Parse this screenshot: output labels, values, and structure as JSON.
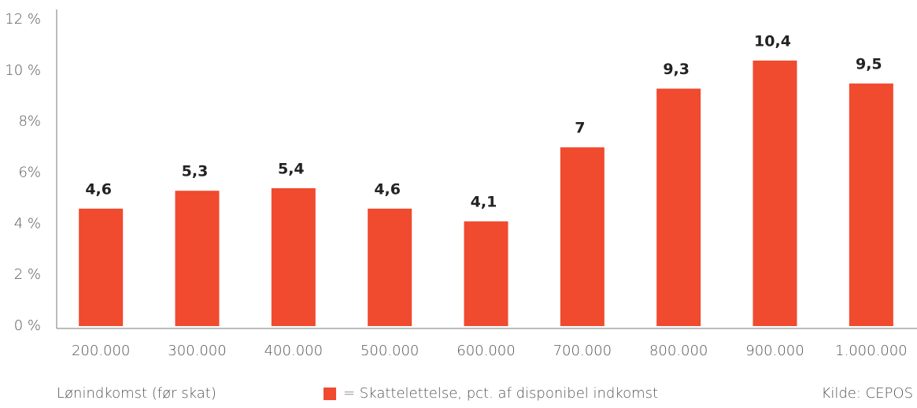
{
  "chart_data": {
    "type": "bar",
    "categories": [
      "200.000",
      "300.000",
      "400.000",
      "500.000",
      "600.000",
      "700.000",
      "800.000",
      "900.000",
      "1.000.000"
    ],
    "series": [
      {
        "name": "= Skattelettelse, pct. af disponibel indkomst",
        "color": "#f04a2f",
        "values": [
          4.6,
          5.3,
          5.4,
          4.6,
          4.1,
          7,
          9.3,
          10.4,
          9.5
        ],
        "value_labels": [
          "4,6",
          "5,3",
          "5,4",
          "4,6",
          "4,1",
          "7",
          "9,3",
          "10,4",
          "9,5"
        ]
      }
    ],
    "ylim": [
      0,
      12
    ],
    "yticks": [
      {
        "value": 0,
        "label": "0 %"
      },
      {
        "value": 2,
        "label": "2 %"
      },
      {
        "value": 4,
        "label": "4 %"
      },
      {
        "value": 6,
        "label": "6%"
      },
      {
        "value": 8,
        "label": "8%"
      },
      {
        "value": 10,
        "label": "10 %"
      },
      {
        "value": 12,
        "label": "12 %"
      }
    ],
    "x_label": "Lønindkomst (før skat)",
    "source": "Kilde: CEPOS",
    "grid": false
  }
}
